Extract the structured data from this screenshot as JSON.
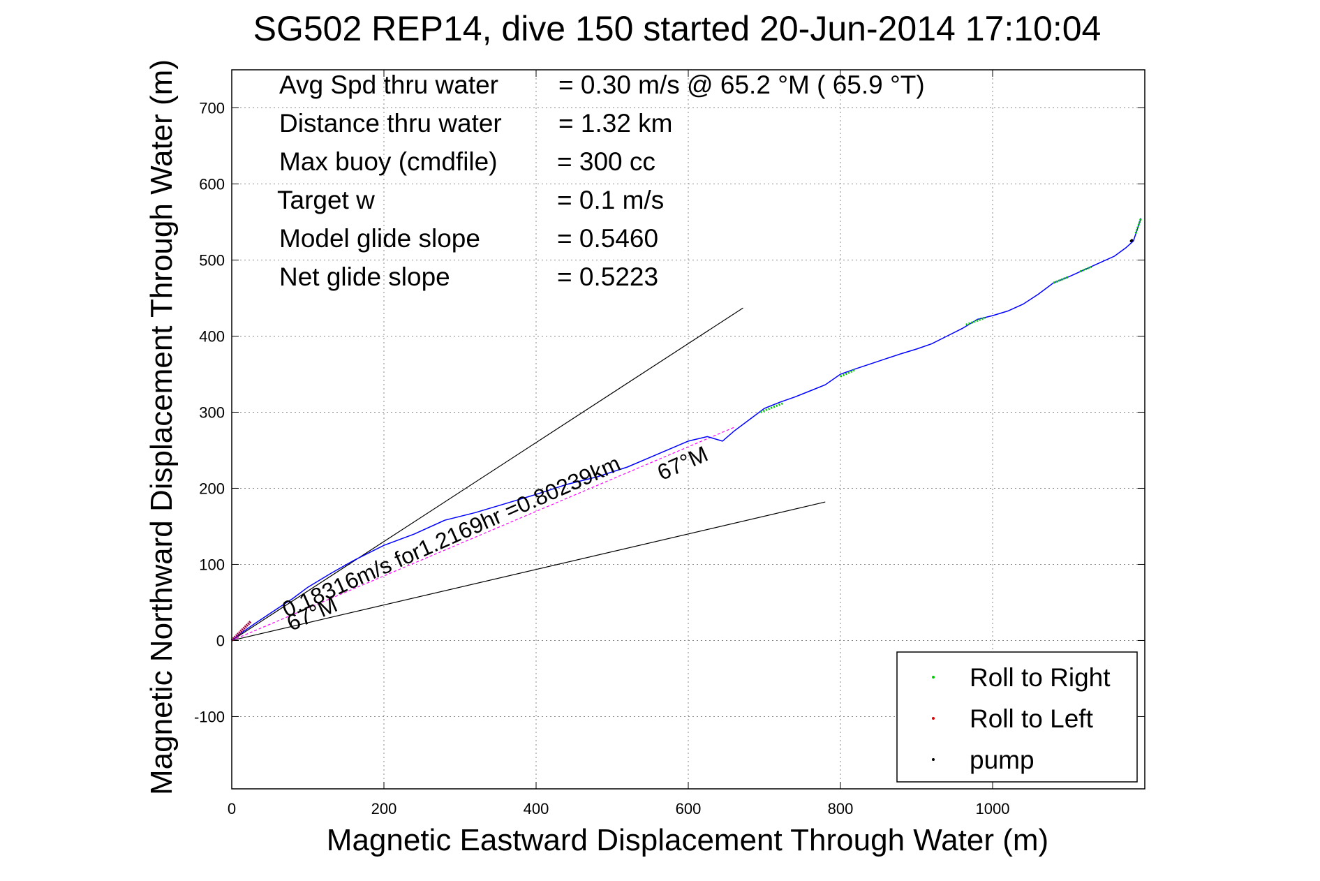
{
  "chart_data": {
    "type": "line",
    "title": "SG502 REP14, dive 150 started 20-Jun-2014 17:10:04",
    "xlabel": "Magnetic Eastward Displacement Through Water (m)",
    "ylabel": "Magnetic Northward Displacement Through Water (m)",
    "xlim": [
      0,
      1200
    ],
    "ylim": [
      -195,
      750
    ],
    "xticks": [
      0,
      200,
      400,
      600,
      800,
      1000
    ],
    "yticks": [
      -100,
      0,
      100,
      200,
      300,
      400,
      500,
      600,
      700
    ],
    "grid": true,
    "legend_position": "bottom-right",
    "info_lines": [
      {
        "label": "Avg Spd thru water",
        "value": "=  0.30 m/s @  65.2 °M ( 65.9 °T)"
      },
      {
        "label": "Distance thru water",
        "value": "=  1.32 km"
      },
      {
        "label": "Max buoy (cmdfile)",
        "value": "= 300 cc"
      },
      {
        "label": "Target w",
        "value": "= 0.1 m/s"
      },
      {
        "label": "Model glide slope",
        "value": "= 0.5460"
      },
      {
        "label": "Net glide slope",
        "value": "= 0.5223"
      }
    ],
    "legend": [
      {
        "label": "Roll to Right",
        "color": "#00cc00"
      },
      {
        "label": "Roll to Left",
        "color": "#dd0000"
      },
      {
        "label": "pump",
        "color": "#000000"
      }
    ],
    "track": {
      "color": "#0000ff",
      "x": [
        0,
        10,
        20,
        30,
        45,
        60,
        80,
        100,
        130,
        160,
        200,
        240,
        280,
        320,
        360,
        400,
        440,
        480,
        520,
        560,
        600,
        625,
        645,
        660,
        680,
        700,
        720,
        740,
        760,
        780,
        800,
        820,
        850,
        880,
        900,
        920,
        940,
        960,
        980,
        1000,
        1020,
        1040,
        1060,
        1080,
        1100,
        1120,
        1140,
        1160,
        1175,
        1185,
        1195
      ],
      "y": [
        0,
        8,
        15,
        22,
        32,
        42,
        55,
        70,
        88,
        105,
        125,
        140,
        158,
        168,
        180,
        192,
        205,
        215,
        228,
        245,
        262,
        268,
        262,
        275,
        290,
        305,
        313,
        320,
        328,
        336,
        350,
        357,
        367,
        377,
        383,
        390,
        400,
        410,
        422,
        427,
        433,
        442,
        455,
        470,
        478,
        487,
        496,
        505,
        516,
        525,
        555
      ]
    },
    "mean_course_line": {
      "color": "#ff00ff",
      "x": [
        0,
        660
      ],
      "y": [
        0,
        280
      ]
    },
    "heading_lines": [
      {
        "x": [
          0,
          672
        ],
        "y": [
          0,
          437
        ],
        "color": "#000000"
      },
      {
        "x": [
          0,
          780
        ],
        "y": [
          0,
          182
        ],
        "color": "#000000"
      }
    ],
    "roll_right_segments": [
      [
        695,
        300,
        725,
        312
      ],
      [
        800,
        347,
        820,
        356
      ],
      [
        965,
        415,
        990,
        424
      ],
      [
        1080,
        470,
        1100,
        478
      ],
      [
        1115,
        485,
        1130,
        491
      ],
      [
        1188,
        535,
        1195,
        555
      ]
    ],
    "roll_left_segments": [
      [
        0,
        0,
        25,
        25
      ]
    ],
    "pump_points": [
      [
        1182,
        525
      ],
      [
        1183,
        526
      ]
    ],
    "annotations": [
      {
        "text": "0.18316m/s for1.2169hr =0.80239km",
        "x": 72,
        "y": 30,
        "angle": 23.9
      },
      {
        "text": "67°M",
        "x": 78,
        "y": 12,
        "angle": 23.9
      },
      {
        "text": "67°M",
        "x": 565,
        "y": 210,
        "angle": 23.9
      }
    ]
  }
}
